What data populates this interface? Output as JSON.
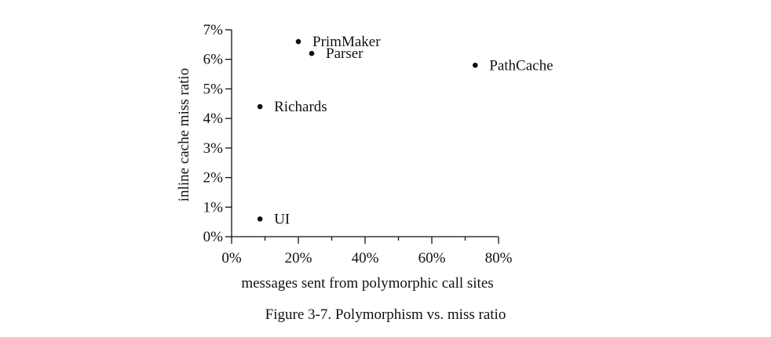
{
  "chart_data": {
    "type": "scatter",
    "title": "",
    "xlabel": "messages sent from polymorphic call sites",
    "ylabel": "inline cache miss ratio",
    "xlim": [
      0,
      80
    ],
    "ylim": [
      0,
      7
    ],
    "x_ticks": [
      0,
      20,
      40,
      60,
      80
    ],
    "x_tick_labels": [
      "0%",
      "20%",
      "40%",
      "60%",
      "80%"
    ],
    "y_ticks": [
      0,
      1,
      2,
      3,
      4,
      5,
      6,
      7
    ],
    "y_tick_labels": [
      "0%",
      "1%",
      "2%",
      "3%",
      "4%",
      "5%",
      "6%",
      "7%"
    ],
    "grid": false,
    "points": [
      {
        "label": "PrimMaker",
        "x": 20,
        "y": 6.6
      },
      {
        "label": "Parser",
        "x": 24,
        "y": 6.2
      },
      {
        "label": "PathCache",
        "x": 73,
        "y": 5.8
      },
      {
        "label": "Richards",
        "x": 8.5,
        "y": 4.4
      },
      {
        "label": "UI",
        "x": 8.5,
        "y": 0.6
      }
    ]
  },
  "caption": "Figure 3-7.  Polymorphism vs. miss ratio"
}
